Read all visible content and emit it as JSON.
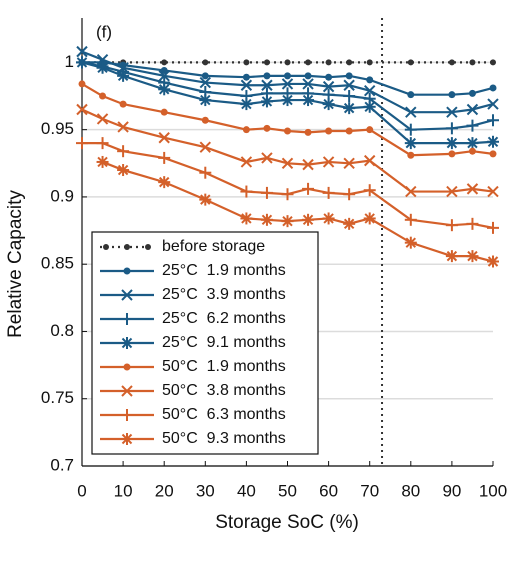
{
  "chart_data": {
    "type": "line",
    "annotation": "(f)",
    "x_label": "Storage SoC (%)",
    "y_label": "Relative Capacity",
    "x": [
      0,
      5,
      10,
      20,
      30,
      40,
      45,
      50,
      55,
      60,
      65,
      70,
      80,
      90,
      95,
      100
    ],
    "xlim": [
      0,
      100
    ],
    "ylim": [
      0.7,
      1.033
    ],
    "xticks": [
      0,
      10,
      20,
      30,
      40,
      50,
      60,
      70,
      80,
      90,
      100
    ],
    "yticks": [
      0.7,
      0.75,
      0.8,
      0.85,
      0.9,
      0.95,
      1
    ],
    "grid": true,
    "reference_line_x": 73,
    "legend_position": "lower-left",
    "series": [
      {
        "name": "before storage",
        "color": "#333333",
        "dash": "dotted",
        "marker": "dot",
        "values": [
          1,
          1,
          1,
          1,
          1,
          1,
          1,
          1,
          1,
          1,
          1,
          1,
          1,
          1,
          1,
          1
        ]
      },
      {
        "name": "25°C  1.9 months",
        "color": "#1b5b86",
        "marker": "circle",
        "values": [
          1.0,
          1.0,
          0.998,
          0.994,
          0.99,
          0.989,
          0.99,
          0.99,
          0.99,
          0.989,
          0.99,
          0.987,
          0.976,
          0.976,
          0.977,
          0.981
        ]
      },
      {
        "name": "25°C  3.9 months",
        "color": "#1b5b86",
        "marker": "x",
        "values": [
          1.008,
          1.002,
          0.996,
          0.99,
          0.985,
          0.983,
          0.983,
          0.984,
          0.984,
          0.982,
          0.983,
          0.979,
          0.963,
          0.963,
          0.965,
          0.969
        ]
      },
      {
        "name": "25°C  6.2 months",
        "color": "#1b5b86",
        "marker": "plus",
        "values": [
          1.0,
          0.997,
          0.993,
          0.985,
          0.978,
          0.975,
          0.977,
          0.977,
          0.977,
          0.976,
          0.975,
          0.973,
          0.95,
          0.951,
          0.953,
          0.957
        ]
      },
      {
        "name": "25°C  9.1 months",
        "color": "#1b5b86",
        "marker": "star",
        "values": [
          1.0,
          0.996,
          0.99,
          0.98,
          0.972,
          0.969,
          0.971,
          0.972,
          0.972,
          0.969,
          0.966,
          0.967,
          0.94,
          0.94,
          0.94,
          0.941
        ]
      },
      {
        "name": "50°C  1.9 months",
        "color": "#d4602a",
        "marker": "circle",
        "values": [
          0.984,
          0.975,
          0.969,
          0.963,
          0.957,
          0.95,
          0.951,
          0.949,
          0.948,
          0.949,
          0.949,
          0.95,
          0.931,
          0.932,
          0.934,
          0.932
        ]
      },
      {
        "name": "50°C  3.8 months",
        "color": "#d4602a",
        "marker": "x",
        "values": [
          0.965,
          0.958,
          0.952,
          0.944,
          0.937,
          0.926,
          0.929,
          0.925,
          0.924,
          0.926,
          0.925,
          0.927,
          0.904,
          0.904,
          0.906,
          0.904
        ]
      },
      {
        "name": "50°C  6.3 months",
        "color": "#d4602a",
        "marker": "plus",
        "values": [
          0.94,
          0.94,
          0.934,
          0.929,
          0.918,
          0.904,
          0.903,
          0.902,
          0.906,
          0.903,
          0.902,
          0.905,
          0.883,
          0.879,
          0.88,
          0.877
        ]
      },
      {
        "name": "50°C  9.3 months",
        "color": "#d4602a",
        "marker": "star",
        "values": [
          null,
          0.926,
          0.92,
          0.911,
          0.898,
          0.884,
          0.883,
          0.882,
          0.883,
          0.884,
          0.88,
          0.884,
          0.866,
          0.856,
          0.856,
          0.852
        ]
      }
    ]
  }
}
